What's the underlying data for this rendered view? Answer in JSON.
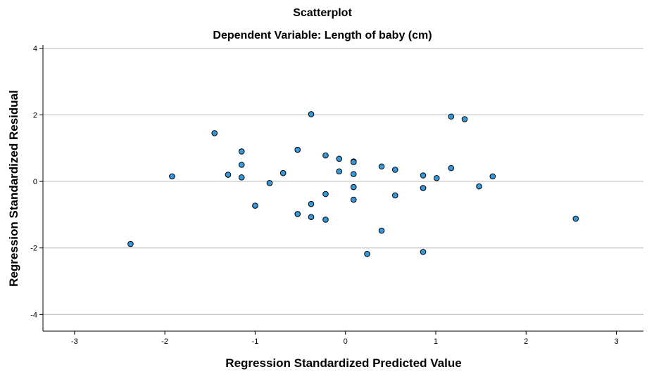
{
  "chart_data": {
    "type": "scatter",
    "title": "Scatterplot",
    "subtitle": "Dependent Variable: Length of baby (cm)",
    "xlabel": "Regression Standardized Predicted Value",
    "ylabel": "Regression Standardized Residual",
    "xlim": [
      -3.35,
      3.3
    ],
    "ylim": [
      -4.5,
      4.1
    ],
    "xticks": [
      -3,
      -2,
      -1,
      0,
      1,
      2,
      3
    ],
    "yticks": [
      -4,
      -2,
      0,
      2,
      4
    ],
    "xtick_labels": [
      "-3",
      "-2",
      "-1",
      "0",
      "1",
      "2",
      "3"
    ],
    "ytick_labels": [
      "-4",
      "-2",
      "0",
      "2",
      "4"
    ],
    "grid": "horizontal",
    "colors": {
      "point_fill": "#3399dd",
      "point_stroke": "#000000",
      "grid": "#c8c8c8",
      "axis": "#000000"
    },
    "points": [
      {
        "x": -2.38,
        "y": -1.88
      },
      {
        "x": -1.92,
        "y": 0.15
      },
      {
        "x": -1.45,
        "y": 1.45
      },
      {
        "x": -1.3,
        "y": 0.2
      },
      {
        "x": -1.15,
        "y": 0.9
      },
      {
        "x": -1.15,
        "y": 0.5
      },
      {
        "x": -1.15,
        "y": 0.12
      },
      {
        "x": -1.0,
        "y": -0.73
      },
      {
        "x": -0.84,
        "y": -0.05
      },
      {
        "x": -0.69,
        "y": 0.25
      },
      {
        "x": -0.53,
        "y": 0.95
      },
      {
        "x": -0.53,
        "y": -0.98
      },
      {
        "x": -0.38,
        "y": 2.02
      },
      {
        "x": -0.38,
        "y": -0.68
      },
      {
        "x": -0.38,
        "y": -1.07
      },
      {
        "x": -0.22,
        "y": 0.78
      },
      {
        "x": -0.22,
        "y": -0.38
      },
      {
        "x": -0.22,
        "y": -1.15
      },
      {
        "x": -0.07,
        "y": 0.68
      },
      {
        "x": -0.07,
        "y": 0.3
      },
      {
        "x": 0.09,
        "y": 0.6
      },
      {
        "x": 0.09,
        "y": 0.58
      },
      {
        "x": 0.09,
        "y": 0.22
      },
      {
        "x": 0.09,
        "y": -0.17
      },
      {
        "x": 0.09,
        "y": -0.55
      },
      {
        "x": 0.24,
        "y": -2.18
      },
      {
        "x": 0.4,
        "y": 0.45
      },
      {
        "x": 0.4,
        "y": -1.48
      },
      {
        "x": 0.55,
        "y": 0.35
      },
      {
        "x": 0.55,
        "y": -0.42
      },
      {
        "x": 0.86,
        "y": 0.18
      },
      {
        "x": 0.86,
        "y": -0.2
      },
      {
        "x": 0.86,
        "y": -0.2
      },
      {
        "x": 0.86,
        "y": -2.12
      },
      {
        "x": 1.01,
        "y": 0.1
      },
      {
        "x": 1.17,
        "y": 1.95
      },
      {
        "x": 1.17,
        "y": 0.4
      },
      {
        "x": 1.32,
        "y": 1.87
      },
      {
        "x": 1.48,
        "y": -0.15
      },
      {
        "x": 1.63,
        "y": 0.15
      },
      {
        "x": 2.55,
        "y": -1.12
      }
    ]
  }
}
